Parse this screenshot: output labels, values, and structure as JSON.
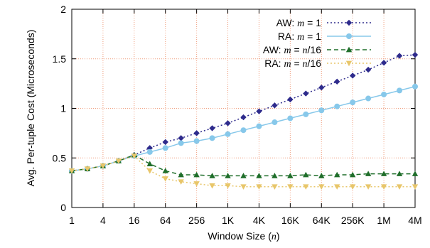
{
  "chart_data": {
    "type": "line",
    "xlabel": "Window Size (n)",
    "xlabel_parts": [
      "Window Size (",
      "n",
      ")"
    ],
    "ylabel": "Avg. Per-tuple Cost (Microseconds)",
    "ylim": [
      0,
      2
    ],
    "y_ticks": [
      "0",
      "0.5",
      "1",
      "1.5",
      "2"
    ],
    "x_scale": "log2",
    "x_ticks": [
      "1",
      "4",
      "16",
      "64",
      "256",
      "1K",
      "4K",
      "16K",
      "64K",
      "256K",
      "1M",
      "4M"
    ],
    "x_tick_exponents": [
      0,
      2,
      4,
      6,
      8,
      10,
      12,
      14,
      16,
      18,
      20,
      22
    ],
    "x_exponents": [
      0,
      1,
      2,
      3,
      4,
      5,
      6,
      7,
      8,
      9,
      10,
      11,
      12,
      13,
      14,
      15,
      16,
      17,
      18,
      19,
      20,
      21,
      22
    ],
    "grid": true,
    "legend_position": "top-right",
    "series": [
      {
        "name": "AW: m = 1",
        "label_prefix": "AW: ",
        "label_var": "m",
        "label_suffix": " = 1",
        "color": "#2e2b8c",
        "dash": "2,3",
        "marker": "diamond",
        "values": [
          0.37,
          0.39,
          0.42,
          0.47,
          0.53,
          0.6,
          0.66,
          0.7,
          0.75,
          0.8,
          0.85,
          0.91,
          0.97,
          1.03,
          1.09,
          1.15,
          1.21,
          1.27,
          1.33,
          1.39,
          1.46,
          1.53,
          1.54
        ]
      },
      {
        "name": "RA: m = 1",
        "label_prefix": "RA: ",
        "label_var": "m",
        "label_suffix": " = 1",
        "color": "#87c8ea",
        "dash": "",
        "marker": "circle",
        "values": [
          0.37,
          0.39,
          0.42,
          0.47,
          0.52,
          0.56,
          0.6,
          0.65,
          0.67,
          0.7,
          0.74,
          0.78,
          0.82,
          0.86,
          0.9,
          0.94,
          0.98,
          1.02,
          1.06,
          1.1,
          1.14,
          1.18,
          1.22
        ]
      },
      {
        "name": "AW: m = n/16",
        "label_prefix": "AW: ",
        "label_var": "m",
        "label_suffix": " = ",
        "label_var2": "n",
        "label_suffix2": "/16",
        "color": "#1f6e2a",
        "dash": "6,4",
        "marker": "triangle",
        "values": [
          0.37,
          0.39,
          0.42,
          0.47,
          0.53,
          0.44,
          0.37,
          0.33,
          0.33,
          0.32,
          0.32,
          0.32,
          0.32,
          0.32,
          0.32,
          0.33,
          0.32,
          0.33,
          0.33,
          0.34,
          0.34,
          0.34,
          0.34
        ]
      },
      {
        "name": "RA: m = n/16",
        "label_prefix": "RA: ",
        "label_var": "m",
        "label_suffix": " = ",
        "label_var2": "n",
        "label_suffix2": "/16",
        "color": "#e8c66a",
        "dash": "2,3",
        "marker": "triangle-down",
        "values": [
          0.37,
          0.39,
          0.42,
          0.47,
          0.52,
          0.37,
          0.29,
          0.26,
          0.24,
          0.22,
          0.22,
          0.21,
          0.21,
          0.21,
          0.21,
          0.21,
          0.21,
          0.21,
          0.21,
          0.21,
          0.21,
          0.21,
          0.21
        ]
      }
    ]
  }
}
